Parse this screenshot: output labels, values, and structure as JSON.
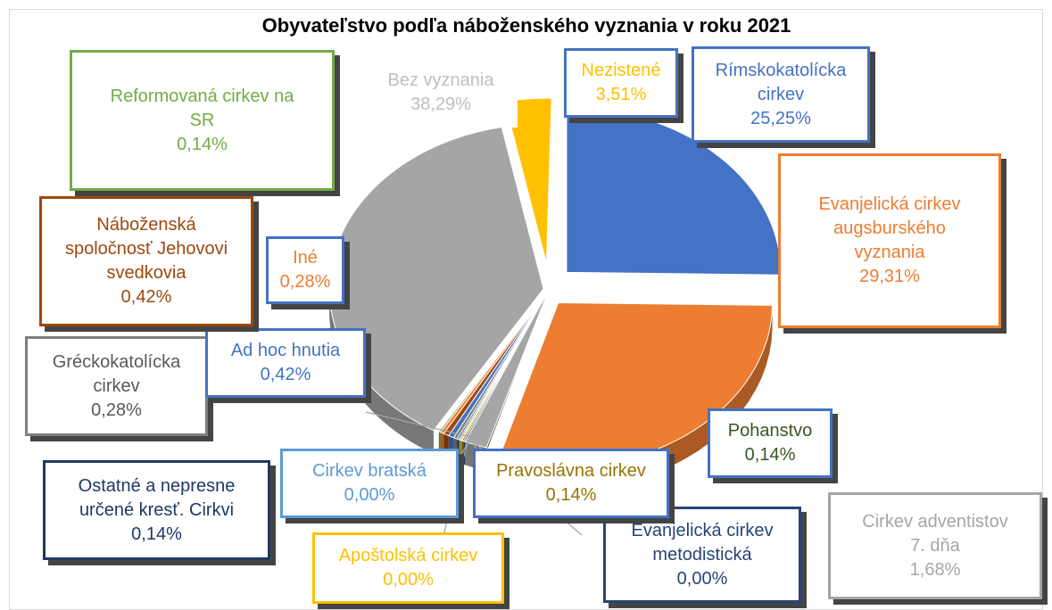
{
  "chart_data": {
    "type": "pie",
    "title": "Obyvateľstvo podľa náboženského vyznania v roku 2021",
    "slices": [
      {
        "key": "rimsko",
        "label": "Rímskokatolícka cirkev",
        "value": 25.25,
        "value_label": "25,25%",
        "color": "#4472c4"
      },
      {
        "key": "evanjelicka_ab",
        "label": "Evanjelická cirkev augsburského vyznania",
        "value": 29.31,
        "value_label": "29,31%",
        "color": "#ed7d31"
      },
      {
        "key": "pohanstvo",
        "label": "Pohanstvo",
        "value": 0.14,
        "value_label": "0,14%",
        "color": "#375623"
      },
      {
        "key": "adventisti",
        "label": "Cirkev adventistov 7. dňa",
        "value": 1.68,
        "value_label": "1,68%",
        "color": "#a5a5a5"
      },
      {
        "key": "metodisti",
        "label": "Evanjelická cirkev metodistická",
        "value": 0.0,
        "value_label": "0,00%",
        "color": "#264478"
      },
      {
        "key": "pravoslavna",
        "label": "Pravoslávna cirkev",
        "value": 0.14,
        "value_label": "0,14%",
        "color": "#997300"
      },
      {
        "key": "apostolska",
        "label": "Apoštolská cirkev",
        "value": 0.0,
        "value_label": "0,00%",
        "color": "#ffc000"
      },
      {
        "key": "bratska",
        "label": "Cirkev bratská",
        "value": 0.0,
        "value_label": "0,00%",
        "color": "#5b9bd5"
      },
      {
        "key": "ostatne",
        "label": "Ostatné a nepresne určené kresť. Cirkvi",
        "value": 0.14,
        "value_label": "0,14%",
        "color": "#1f3864"
      },
      {
        "key": "greckokatolicka",
        "label": "Gréckokatolícka cirkev",
        "value": 0.28,
        "value_label": "0,28%",
        "color": "#7f7f7f"
      },
      {
        "key": "adhoc",
        "label": "Ad hoc hnutia",
        "value": 0.42,
        "value_label": "0,42%",
        "color": "#4472c4"
      },
      {
        "key": "jehovovi",
        "label": "Náboženská spoločnosť Jehovovi svedkovia",
        "value": 0.42,
        "value_label": "0,42%",
        "color": "#9e480e"
      },
      {
        "key": "ine",
        "label": "Iné",
        "value": 0.28,
        "value_label": "0,28%",
        "color": "#ed7d31"
      },
      {
        "key": "reformovana",
        "label": "Reformovaná cirkev na SR",
        "value": 0.14,
        "value_label": "0,14%",
        "color": "#70ad47"
      },
      {
        "key": "bez",
        "label": "Bez vyznania",
        "value": 38.29,
        "value_label": "38,29%",
        "color": "#a5a5a5"
      },
      {
        "key": "nezistene",
        "label": "Nezistené",
        "value": 3.51,
        "value_label": "3,51%",
        "color": "#ffc000"
      }
    ],
    "labels": {
      "rimsko": {
        "lines": [
          "Rímskokatolícka",
          "cirkev"
        ],
        "value": "25,25%",
        "text_color": "#4472c4",
        "border": "#4472c4"
      },
      "evanjelicka_ab": {
        "lines": [
          "Evanjelická cirkev",
          "augsburského",
          "vyznania"
        ],
        "value": "29,31%",
        "text_color": "#ed7d31",
        "border": "#ed7d31"
      },
      "pohanstvo": {
        "lines": [
          "Pohanstvo"
        ],
        "value": "0,14%",
        "text_color": "#375623",
        "border": "#4472c4"
      },
      "adventisti": {
        "lines": [
          "Cirkev adventistov",
          "7. dňa"
        ],
        "value": "1,68%",
        "text_color": "#a5a5a5",
        "border": "#a5a5a5"
      },
      "metodisti": {
        "lines": [
          "Evanjelická cirkev",
          "metodistická"
        ],
        "value": "0,00%",
        "text_color": "#264478",
        "border": "#264478"
      },
      "pravoslavna": {
        "lines": [
          "Pravoslávna cirkev"
        ],
        "value": "0,14%",
        "text_color": "#997300",
        "border": "#4472c4"
      },
      "apostolska": {
        "lines": [
          "Apoštolská cirkev"
        ],
        "value": "0,00%",
        "text_color": "#ffc000",
        "border": "#ffc000"
      },
      "bratska": {
        "lines": [
          "Cirkev bratská"
        ],
        "value": "0,00%",
        "text_color": "#5b9bd5",
        "border": "#5b9bd5"
      },
      "ostatne": {
        "lines": [
          "Ostatné a nepresne",
          "určené kresť. Cirkvi"
        ],
        "value": "0,14%",
        "text_color": "#1f3864",
        "border": "#1f3864"
      },
      "greckokatolicka": {
        "lines": [
          "Gréckokatolícka",
          "cirkev"
        ],
        "value": "0,28%",
        "text_color": "#595959",
        "border": "#7f7f7f"
      },
      "adhoc": {
        "lines": [
          "Ad hoc hnutia"
        ],
        "value": "0,42%",
        "text_color": "#4472c4",
        "border": "#4472c4"
      },
      "jehovovi": {
        "lines": [
          "Náboženská",
          "spoločnosť Jehovovi",
          "svedkovia"
        ],
        "value": "0,42%",
        "text_color": "#9e480e",
        "border": "#9e480e"
      },
      "ine": {
        "lines": [
          "Iné"
        ],
        "value": "0,28%",
        "text_color": "#ed7d31",
        "border": "#4472c4"
      },
      "reformovana": {
        "lines": [
          "Reformovaná cirkev na",
          "SR"
        ],
        "value": "0,14%",
        "text_color": "#70ad47",
        "border": "#70ad47"
      },
      "bez": {
        "lines": [
          "Bez vyznania"
        ],
        "value": "38,29%",
        "text_color": "#bfbfbf",
        "border": "#ffffff"
      },
      "nezistene": {
        "lines": [
          "Nezistené"
        ],
        "value": "3,51%",
        "text_color": "#ffc000",
        "border": "#4472c4"
      }
    }
  }
}
